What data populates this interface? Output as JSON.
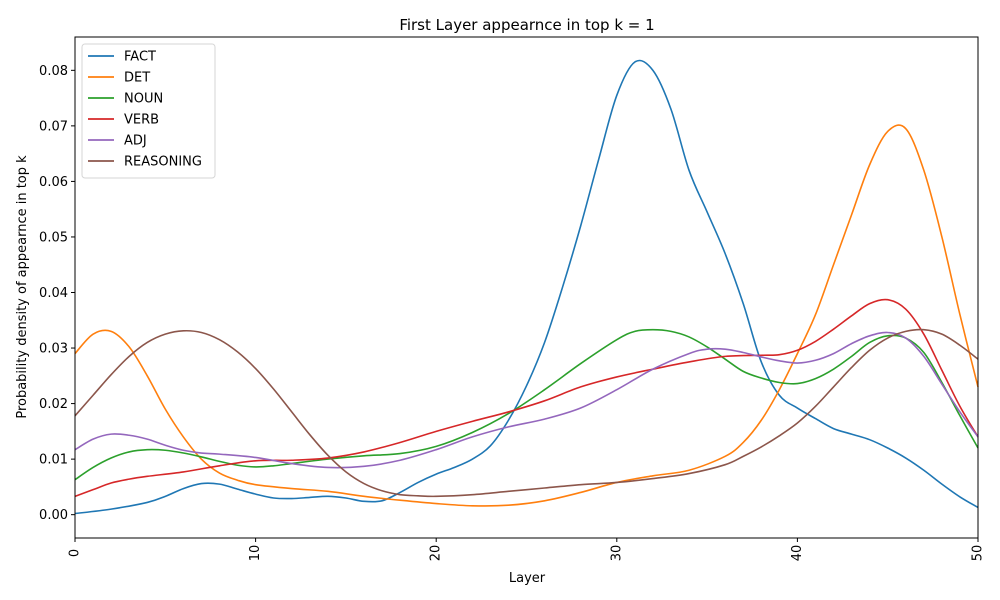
{
  "chart_data": {
    "type": "line",
    "title": "First Layer appearnce in top k = 1",
    "xlabel": "Layer",
    "ylabel": "Probability density of appearnce in top k",
    "xlim": [
      0,
      50
    ],
    "ylim": [
      -0.0042,
      0.086
    ],
    "x_ticks": [
      "0",
      "10",
      "20",
      "30",
      "40",
      "50"
    ],
    "y_ticks": [
      "0.00",
      "0.01",
      "0.02",
      "0.03",
      "0.04",
      "0.05",
      "0.06",
      "0.07",
      "0.08"
    ],
    "x_tick_values": [
      0,
      10,
      20,
      30,
      40,
      50
    ],
    "y_tick_values": [
      0,
      0.01,
      0.02,
      0.03,
      0.04,
      0.05,
      0.06,
      0.07,
      0.08
    ],
    "grid": false,
    "legend_position": "top-left",
    "series": [
      {
        "name": "FACT",
        "color": "#1f77b4",
        "x": [
          0,
          2,
          4,
          5,
          6,
          7,
          8,
          9,
          10,
          11,
          12,
          13,
          14,
          15,
          16,
          17,
          18,
          19,
          20,
          21,
          22,
          23,
          24,
          25,
          26,
          27,
          28,
          29,
          30,
          31,
          32,
          33,
          34,
          35,
          36,
          37,
          38,
          39,
          40,
          41,
          42,
          43,
          44,
          45,
          46,
          47,
          48,
          49,
          50
        ],
        "y": [
          0.0002,
          0.001,
          0.0022,
          0.0033,
          0.0047,
          0.0056,
          0.0055,
          0.0046,
          0.0037,
          0.003,
          0.0029,
          0.0031,
          0.0033,
          0.003,
          0.0024,
          0.0025,
          0.004,
          0.0058,
          0.0073,
          0.0085,
          0.01,
          0.0124,
          0.017,
          0.0232,
          0.031,
          0.041,
          0.052,
          0.064,
          0.0755,
          0.0815,
          0.08,
          0.073,
          0.062,
          0.0545,
          0.047,
          0.038,
          0.0275,
          0.0215,
          0.0192,
          0.0173,
          0.0155,
          0.0145,
          0.0135,
          0.012,
          0.0102,
          0.008,
          0.0055,
          0.0032,
          0.0013
        ]
      },
      {
        "name": "DET",
        "color": "#ff7f0e",
        "x": [
          0,
          1,
          2,
          3,
          4,
          5,
          6,
          7,
          8,
          9,
          10,
          12,
          14,
          16,
          18,
          20,
          22,
          24,
          26,
          28,
          30,
          32,
          34,
          36,
          37,
          38,
          39,
          40,
          41,
          42,
          43,
          44,
          45,
          46,
          47,
          48,
          49,
          50
        ],
        "y": [
          0.029,
          0.0325,
          0.033,
          0.0302,
          0.025,
          0.019,
          0.014,
          0.01,
          0.0075,
          0.0062,
          0.0054,
          0.0047,
          0.0042,
          0.0033,
          0.0026,
          0.002,
          0.0016,
          0.0017,
          0.0025,
          0.004,
          0.0058,
          0.007,
          0.008,
          0.0105,
          0.013,
          0.017,
          0.0225,
          0.029,
          0.036,
          0.045,
          0.054,
          0.063,
          0.069,
          0.0695,
          0.062,
          0.05,
          0.036,
          0.023
        ]
      },
      {
        "name": "NOUN",
        "color": "#2ca02c",
        "x": [
          0,
          1,
          2,
          3,
          4,
          5,
          6,
          7,
          8,
          9,
          10,
          11,
          12,
          14,
          16,
          18,
          20,
          22,
          24,
          26,
          28,
          30,
          31,
          32,
          33,
          34,
          35,
          36,
          37,
          38,
          39,
          40,
          41,
          42,
          43,
          44,
          45,
          46,
          47,
          48,
          49,
          50
        ],
        "y": [
          0.0063,
          0.0085,
          0.0102,
          0.0113,
          0.0117,
          0.0116,
          0.0111,
          0.0104,
          0.0096,
          0.0089,
          0.0086,
          0.0088,
          0.0092,
          0.01,
          0.0106,
          0.011,
          0.0123,
          0.0148,
          0.0182,
          0.0225,
          0.0272,
          0.0315,
          0.033,
          0.0333,
          0.033,
          0.032,
          0.0302,
          0.028,
          0.0258,
          0.0246,
          0.0238,
          0.0236,
          0.0245,
          0.0262,
          0.0285,
          0.031,
          0.0322,
          0.0318,
          0.0292,
          0.0238,
          0.0178,
          0.012
        ]
      },
      {
        "name": "VERB",
        "color": "#d62728",
        "x": [
          0,
          1,
          2,
          3,
          4,
          6,
          8,
          10,
          12,
          14,
          16,
          18,
          20,
          22,
          24,
          26,
          28,
          30,
          32,
          34,
          36,
          38,
          39,
          40,
          41,
          42,
          43,
          44,
          45,
          46,
          47,
          48,
          49,
          50
        ],
        "y": [
          0.0033,
          0.0045,
          0.0057,
          0.0064,
          0.0069,
          0.0077,
          0.0088,
          0.0097,
          0.0098,
          0.0102,
          0.0113,
          0.013,
          0.015,
          0.0168,
          0.0185,
          0.0205,
          0.023,
          0.0248,
          0.0262,
          0.0275,
          0.0285,
          0.0287,
          0.0288,
          0.0296,
          0.0312,
          0.0334,
          0.0358,
          0.038,
          0.0387,
          0.037,
          0.0325,
          0.026,
          0.0195,
          0.014
        ]
      },
      {
        "name": "ADJ",
        "color": "#9467bd",
        "x": [
          0,
          1,
          2,
          3,
          4,
          5,
          6,
          7,
          8,
          10,
          12,
          14,
          16,
          18,
          20,
          22,
          24,
          26,
          28,
          30,
          32,
          34,
          35,
          36,
          37,
          38,
          39,
          40,
          41,
          42,
          43,
          44,
          45,
          46,
          47,
          48,
          49,
          50
        ],
        "y": [
          0.0117,
          0.0136,
          0.0145,
          0.0143,
          0.0136,
          0.0125,
          0.0116,
          0.0111,
          0.0109,
          0.0103,
          0.0092,
          0.0085,
          0.0087,
          0.0098,
          0.0117,
          0.014,
          0.0158,
          0.0172,
          0.0192,
          0.0225,
          0.0262,
          0.029,
          0.0298,
          0.0298,
          0.0292,
          0.0284,
          0.0277,
          0.0273,
          0.0278,
          0.029,
          0.0308,
          0.0322,
          0.0328,
          0.0318,
          0.0285,
          0.0235,
          0.0185,
          0.014
        ]
      },
      {
        "name": "REASONING",
        "color": "#8c564b",
        "x": [
          0,
          1,
          2,
          3,
          4,
          5,
          6,
          7,
          8,
          9,
          10,
          11,
          12,
          13,
          14,
          15,
          16,
          17,
          18,
          19,
          20,
          22,
          24,
          26,
          28,
          30,
          32,
          34,
          36,
          37,
          38,
          39,
          40,
          41,
          42,
          43,
          44,
          45,
          46,
          47,
          48,
          49,
          50
        ],
        "y": [
          0.0178,
          0.0215,
          0.0252,
          0.0285,
          0.031,
          0.0325,
          0.0331,
          0.0328,
          0.0315,
          0.0293,
          0.0263,
          0.0226,
          0.0185,
          0.0144,
          0.0107,
          0.0077,
          0.0056,
          0.0043,
          0.0036,
          0.0034,
          0.0033,
          0.0036,
          0.0042,
          0.0048,
          0.0054,
          0.0058,
          0.0065,
          0.0074,
          0.009,
          0.0105,
          0.0122,
          0.0142,
          0.0165,
          0.0195,
          0.023,
          0.0265,
          0.0296,
          0.0318,
          0.033,
          0.0333,
          0.0325,
          0.0305,
          0.028
        ]
      }
    ]
  }
}
